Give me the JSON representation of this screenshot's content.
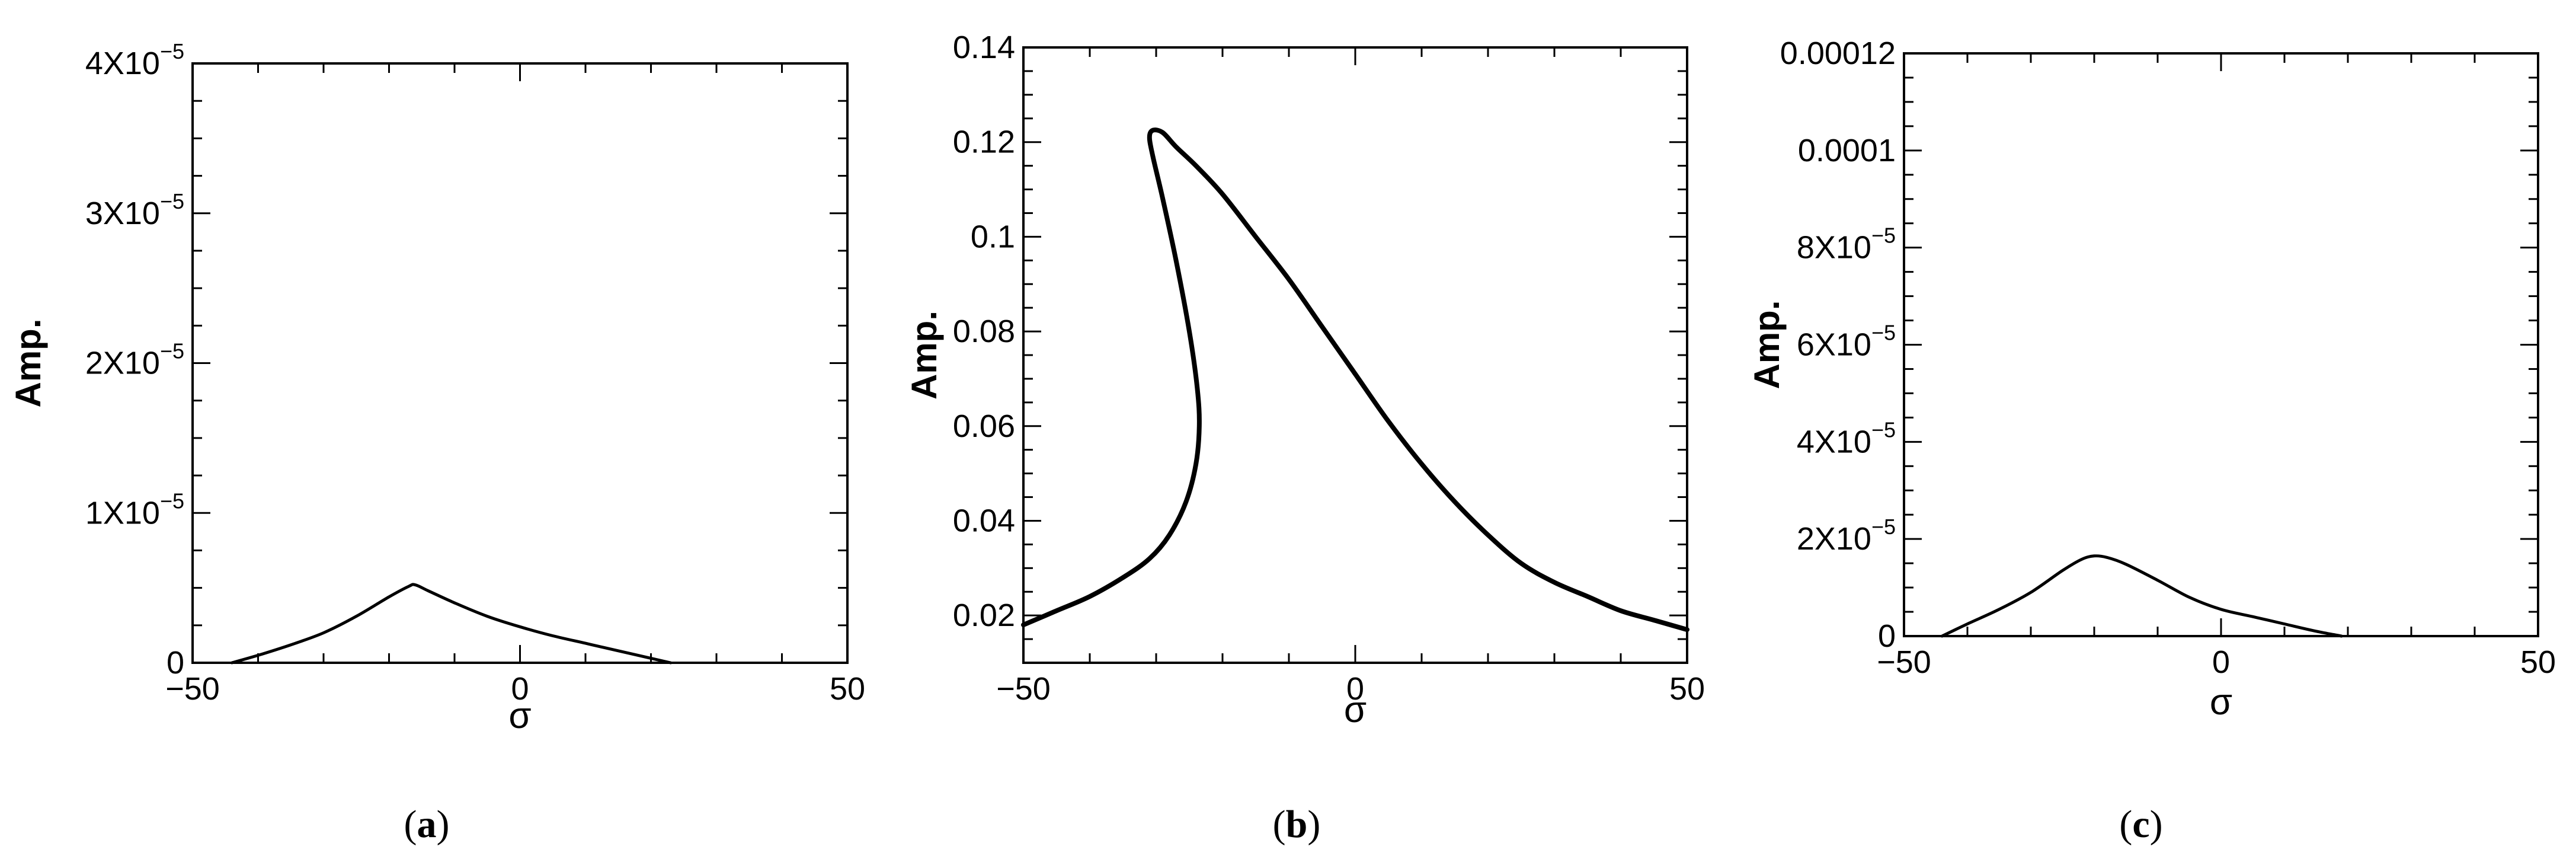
{
  "chart_data": [
    {
      "type": "line",
      "panel_label": "a",
      "xlabel": "σ",
      "ylabel": "Amp.",
      "xlim": [
        -50,
        50
      ],
      "ylim": [
        0,
        4e-05
      ],
      "x_ticks": [
        {
          "value": -50,
          "label": "−50"
        },
        {
          "value": 0,
          "label": "0"
        },
        {
          "value": 50,
          "label": "50"
        }
      ],
      "y_ticks": [
        {
          "value": 0,
          "mant": "0",
          "exp": ""
        },
        {
          "value": 1e-05,
          "mant": "1X10",
          "exp": "−5"
        },
        {
          "value": 2e-05,
          "mant": "2X10",
          "exp": "−5"
        },
        {
          "value": 3e-05,
          "mant": "3X10",
          "exp": "−5"
        },
        {
          "value": 4e-05,
          "mant": "4X10",
          "exp": "−5"
        }
      ],
      "series": [
        {
          "x": [
            -44,
            -40,
            -35,
            -30,
            -25,
            -20,
            -17,
            -16,
            -14,
            -10,
            -5,
            0,
            5,
            10,
            15,
            20,
            23
          ],
          "y": [
            0,
            5e-07,
            1.2e-06,
            2e-06,
            3.1e-06,
            4.4e-06,
            5.1e-06,
            5.2e-06,
            4.8e-06,
            4e-06,
            3.1e-06,
            2.4e-06,
            1.8e-06,
            1.3e-06,
            8e-07,
            3e-07,
            0
          ]
        }
      ],
      "grid": false
    },
    {
      "type": "line",
      "panel_label": "b",
      "xlabel": "σ",
      "ylabel": "Amp.",
      "xlim": [
        -50,
        50
      ],
      "ylim": [
        0.01,
        0.14
      ],
      "x_ticks": [
        {
          "value": -50,
          "label": "−50"
        },
        {
          "value": 0,
          "label": "0"
        },
        {
          "value": 50,
          "label": "50"
        }
      ],
      "y_ticks": [
        {
          "value": 0.02,
          "mant": "0.02",
          "exp": ""
        },
        {
          "value": 0.04,
          "mant": "0.04",
          "exp": ""
        },
        {
          "value": 0.06,
          "mant": "0.06",
          "exp": ""
        },
        {
          "value": 0.08,
          "mant": "0.08",
          "exp": ""
        },
        {
          "value": 0.1,
          "mant": "0.1",
          "exp": ""
        },
        {
          "value": 0.12,
          "mant": "0.12",
          "exp": ""
        },
        {
          "value": 0.14,
          "mant": "0.14",
          "exp": ""
        }
      ],
      "series": [
        {
          "x": [
            -50,
            -45,
            -40,
            -35,
            -31,
            -28,
            -25.5,
            -24,
            -23.5,
            -23.8,
            -25,
            -27,
            -29,
            -30.5,
            -31,
            -30.5,
            -29,
            -27,
            -24,
            -20,
            -15,
            -10,
            -5,
            0,
            5,
            10,
            15,
            20,
            25,
            30,
            35,
            40,
            45,
            50
          ],
          "y": [
            0.018,
            0.021,
            0.024,
            0.028,
            0.032,
            0.037,
            0.044,
            0.052,
            0.06,
            0.068,
            0.08,
            0.095,
            0.108,
            0.117,
            0.121,
            0.1225,
            0.122,
            0.119,
            0.115,
            0.109,
            0.1,
            0.091,
            0.081,
            0.071,
            0.061,
            0.052,
            0.044,
            0.037,
            0.031,
            0.027,
            0.024,
            0.021,
            0.019,
            0.017
          ]
        }
      ],
      "grid": false
    },
    {
      "type": "line",
      "panel_label": "c",
      "xlabel": "σ",
      "ylabel": "Amp.",
      "xlim": [
        -50,
        50
      ],
      "ylim": [
        0,
        0.00012
      ],
      "x_ticks": [
        {
          "value": -50,
          "label": "−50"
        },
        {
          "value": 0,
          "label": "0"
        },
        {
          "value": 50,
          "label": "50"
        }
      ],
      "y_ticks": [
        {
          "value": 0,
          "mant": "0",
          "exp": ""
        },
        {
          "value": 2e-05,
          "mant": "2X10",
          "exp": "−5"
        },
        {
          "value": 4e-05,
          "mant": "4X10",
          "exp": "−5"
        },
        {
          "value": 6e-05,
          "mant": "6X10",
          "exp": "−5"
        },
        {
          "value": 8e-05,
          "mant": "8X10",
          "exp": "−5"
        },
        {
          "value": 0.0001,
          "mant": "0.0001",
          "exp": ""
        },
        {
          "value": 0.00012,
          "mant": "0.00012",
          "exp": ""
        }
      ],
      "series": [
        {
          "x": [
            -44,
            -40,
            -35,
            -30,
            -25,
            -22,
            -20,
            -18,
            -15,
            -10,
            -5,
            0,
            5,
            10,
            15,
            19
          ],
          "y": [
            0,
            2.5e-06,
            5.5e-06,
            9e-06,
            1.35e-05,
            1.58e-05,
            1.65e-05,
            1.62e-05,
            1.48e-05,
            1.15e-05,
            8e-06,
            5.5e-06,
            4e-06,
            2.5e-06,
            1e-06,
            0
          ]
        }
      ],
      "grid": false
    }
  ],
  "captions": [
    {
      "open": "(",
      "letter": "a",
      "close": ")"
    },
    {
      "open": "(",
      "letter": "b",
      "close": ")"
    },
    {
      "open": "(",
      "letter": "c",
      "close": ")"
    }
  ]
}
